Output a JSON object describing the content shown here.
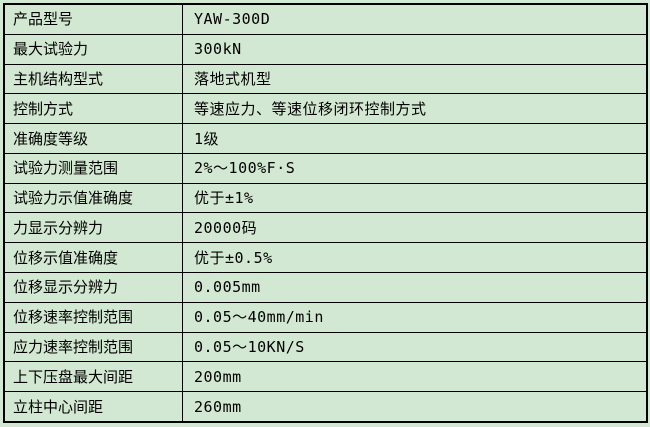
{
  "colors": {
    "bg": "#d3e8d2",
    "border": "#000000",
    "text": "#000000"
  },
  "table": {
    "rows": [
      {
        "label": "产品型号",
        "value": "YAW-300D"
      },
      {
        "label": "最大试验力",
        "value": "300kN"
      },
      {
        "label": "主机结构型式",
        "value": "落地式机型"
      },
      {
        "label": "控制方式",
        "value": "等速应力、等速位移闭环控制方式"
      },
      {
        "label": "准确度等级",
        "value": "1级"
      },
      {
        "label": "试验力测量范围",
        "value": "2%～100%F·S"
      },
      {
        "label": "试验力示值准确度",
        "value": "优于±1%"
      },
      {
        "label": "力显示分辨力",
        "value": "20000码"
      },
      {
        "label": "位移示值准确度",
        "value": "优于±0.5%"
      },
      {
        "label": "位移显示分辨力",
        "value": "0.005mm"
      },
      {
        "label": "位移速率控制范围",
        "value": "0.05～40mm/min"
      },
      {
        "label": "应力速率控制范围",
        "value": "0.05～10KN/S"
      },
      {
        "label": "上下压盘最大间距",
        "value": "200mm"
      },
      {
        "label": "立柱中心间距",
        "value": "260mm"
      }
    ]
  }
}
